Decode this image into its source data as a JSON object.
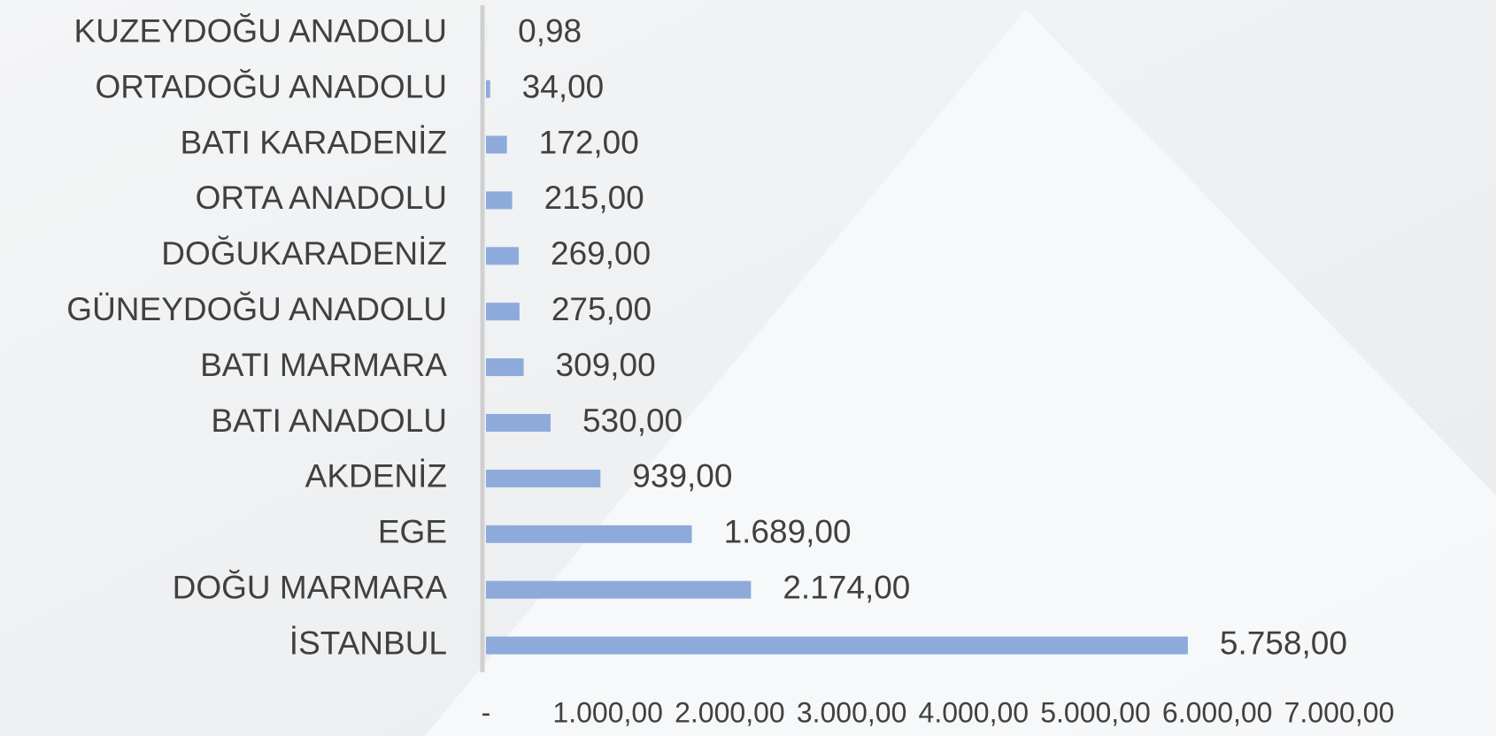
{
  "chart_data": {
    "type": "barh",
    "categories": [
      "KUZEYDOĞU ANADOLU",
      "ORTADOĞU ANADOLU",
      "BATI KARADENİZ",
      "ORTA ANADOLU",
      "DOĞUKARADENİZ",
      "GÜNEYDOĞU ANADOLU",
      "BATI MARMARA",
      "BATI ANADOLU",
      "AKDENİZ",
      "EGE",
      "DOĞU MARMARA",
      "İSTANBUL"
    ],
    "values": [
      0.98,
      34,
      172,
      215,
      269,
      275,
      309,
      530,
      939,
      1689,
      2174,
      5758
    ],
    "value_labels": [
      "0,98",
      "34,00",
      "172,00",
      "215,00",
      "269,00",
      "275,00",
      "309,00",
      "530,00",
      "939,00",
      "1.689,00",
      "2.174,00",
      "5.758,00"
    ],
    "color": "#8eaadb",
    "xlim": [
      0,
      7000
    ],
    "xticks": [
      {
        "value": 0,
        "label": "-"
      },
      {
        "value": 1000,
        "label": "1.000,00"
      },
      {
        "value": 2000,
        "label": "2.000,00"
      },
      {
        "value": 3000,
        "label": "3.000,00"
      },
      {
        "value": 4000,
        "label": "4.000,00"
      },
      {
        "value": 5000,
        "label": "5.000,00"
      },
      {
        "value": 6000,
        "label": "6.000,00"
      },
      {
        "value": 7000,
        "label": "7.000,00"
      }
    ],
    "grid": false
  }
}
